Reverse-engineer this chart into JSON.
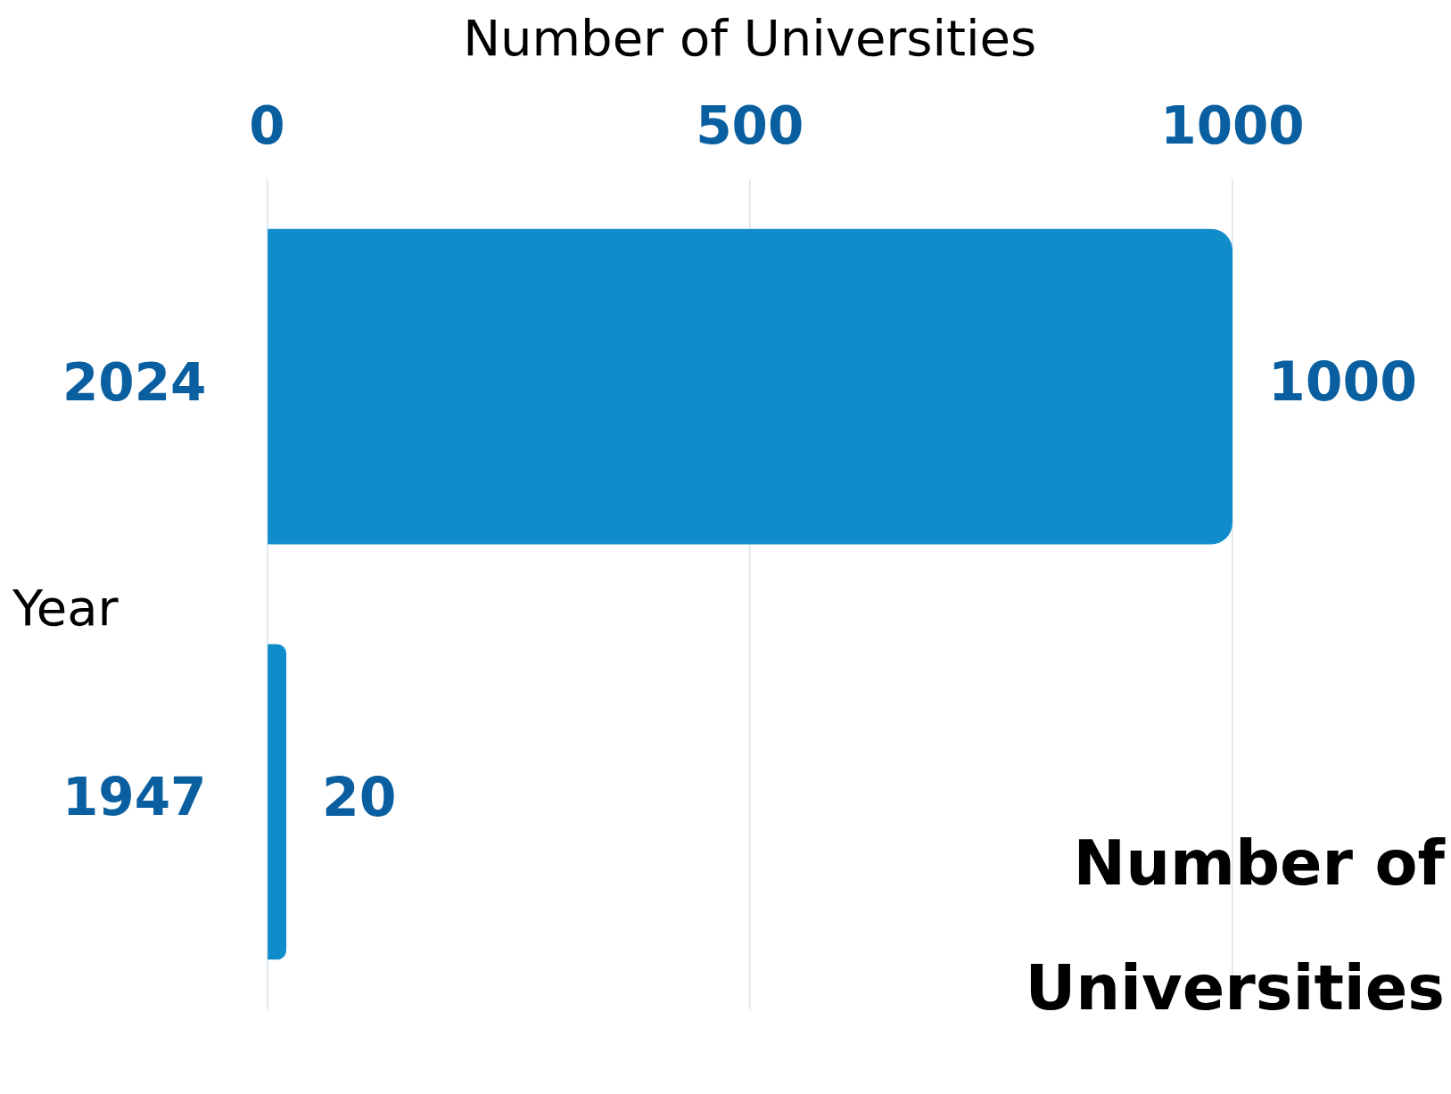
{
  "chart_data": {
    "type": "bar",
    "orientation": "horizontal",
    "title": "Number of Universities",
    "xlabel": "Number of Universities",
    "ylabel": "Year",
    "categories": [
      "2024",
      "1947"
    ],
    "values": [
      1000,
      20
    ],
    "color": "#118ccb",
    "xlim": [
      0,
      1000
    ],
    "xticks": [
      0,
      500,
      1000
    ],
    "grid": "x",
    "data_labels": true
  }
}
